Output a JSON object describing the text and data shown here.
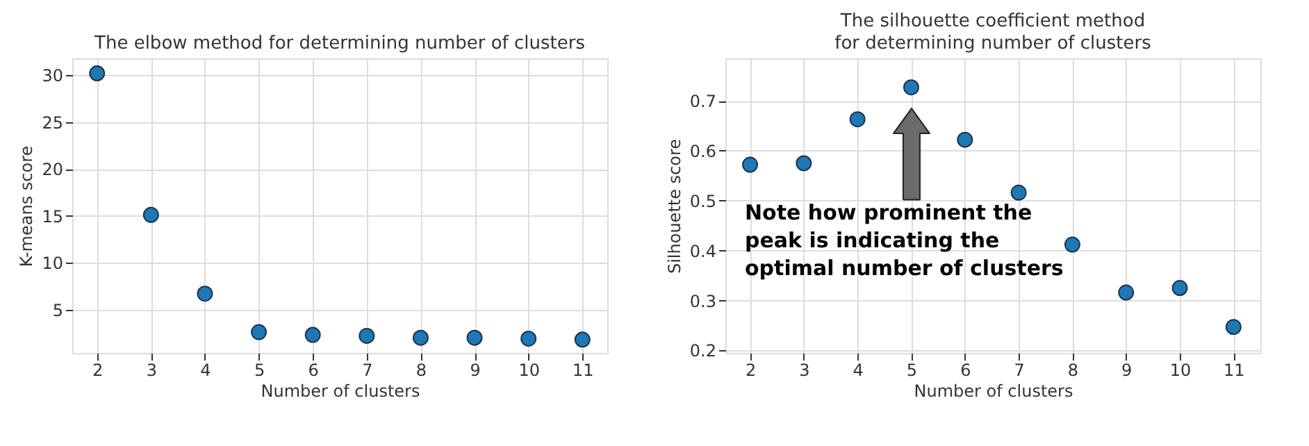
{
  "chart_data": [
    {
      "type": "scatter",
      "title": "The elbow method for determining number of clusters",
      "xlabel": "Number of clusters",
      "ylabel": "K-means score",
      "x": [
        2,
        3,
        4,
        5,
        6,
        7,
        8,
        9,
        10,
        11
      ],
      "series": [
        {
          "color": "#1f77b4",
          "values": [
            30.2,
            15.1,
            6.7,
            2.6,
            2.3,
            2.2,
            2.0,
            2.0,
            1.9,
            1.8
          ]
        }
      ],
      "xlim": [
        1.54,
        11.46
      ],
      "ylim": [
        0.38,
        31.8
      ],
      "xticks": [
        2,
        3,
        4,
        5,
        6,
        7,
        8,
        9,
        10,
        11
      ],
      "yticks": [
        5,
        10,
        15,
        20,
        25,
        30
      ],
      "grid": true,
      "marker": "circle"
    },
    {
      "type": "scatter",
      "title": "The silhouette coefficient method\nfor determining number of clusters",
      "xlabel": "Number of clusters",
      "ylabel": "Silhouette score",
      "x": [
        2,
        3,
        4,
        5,
        6,
        7,
        8,
        9,
        10,
        11
      ],
      "series": [
        {
          "color": "#1f77b4",
          "values": [
            0.572,
            0.575,
            0.663,
            0.727,
            0.622,
            0.516,
            0.412,
            0.316,
            0.325,
            0.247
          ]
        }
      ],
      "xlim": [
        1.54,
        11.5
      ],
      "ylim": [
        0.195,
        0.785
      ],
      "xticks": [
        2,
        3,
        4,
        5,
        6,
        7,
        8,
        9,
        10,
        11
      ],
      "yticks": [
        0.2,
        0.3,
        0.4,
        0.5,
        0.6,
        0.7
      ],
      "grid": true,
      "marker": "circle",
      "annotations": [
        "Note how prominent the\npeak is indicating the\noptimal number of clusters"
      ]
    }
  ]
}
